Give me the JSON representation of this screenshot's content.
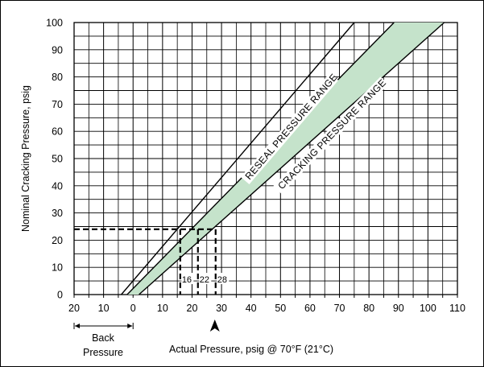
{
  "chart_data": {
    "type": "line",
    "xlabel": "Actual Pressure, psig @ 70°F (21°C)",
    "ylabel": "Nominal Cracking Pressure, psig",
    "x_tick_labels": [
      "20",
      "10",
      "0",
      "10",
      "20",
      "30",
      "40",
      "50",
      "60",
      "70",
      "80",
      "90",
      "100",
      "110"
    ],
    "y_tick_labels": [
      "0",
      "10",
      "20",
      "30",
      "40",
      "50",
      "60",
      "70",
      "80",
      "90",
      "100"
    ],
    "xlim": [
      -20,
      110
    ],
    "ylim": [
      0,
      100
    ],
    "back_pressure_label": [
      "Back",
      "Pressure"
    ],
    "grid": true,
    "series": [
      {
        "name": "RESEAL PRESSURE RANGE",
        "x": [
          -4,
          75
        ],
        "y": [
          0,
          100
        ]
      },
      {
        "name": "CRACKING PRESSURE RANGE lower bound",
        "x": [
          -2,
          88.5
        ],
        "y": [
          0,
          100
        ]
      },
      {
        "name": "CRACKING PRESSURE RANGE upper bound",
        "x": [
          2,
          105.5
        ],
        "y": [
          0,
          100
        ]
      }
    ],
    "band_labels": [
      "RESEAL PRESSURE RANGE",
      "CRACKING PRESSURE RANGE"
    ],
    "example": {
      "nominal": 24,
      "markers": [
        {
          "x": 16,
          "label": "16"
        },
        {
          "x": 22,
          "label": "22"
        },
        {
          "x": 28,
          "label": "28"
        }
      ]
    },
    "colors": {
      "band_fill": "#c5e3cb",
      "line": "#000000",
      "grid": "#000000"
    }
  }
}
